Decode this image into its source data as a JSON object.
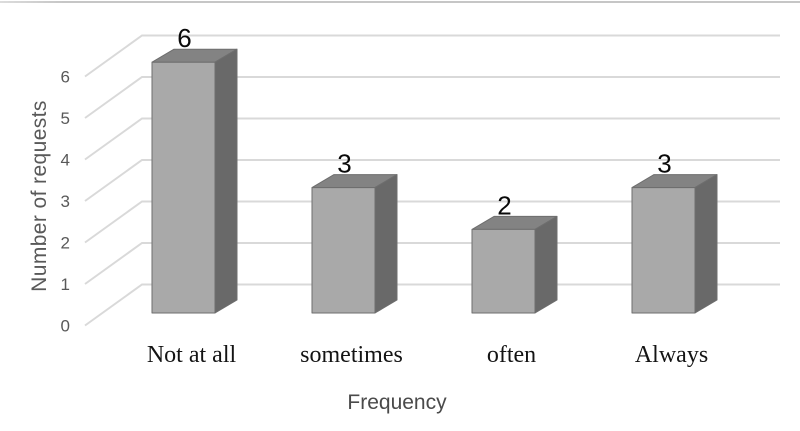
{
  "figure": {
    "top_border_color": "#c6c6c6",
    "background": "#ffffff"
  },
  "chart_data": {
    "type": "bar",
    "variant": "3d-column",
    "title": "",
    "xlabel": "Frequency",
    "ylabel": "Number of requests",
    "categories": [
      "Not at all",
      "sometimes",
      "often",
      "Always"
    ],
    "values": [
      6,
      3,
      2,
      3
    ],
    "data_labels": [
      "6",
      "3",
      "2",
      "3"
    ],
    "yticks": [
      0,
      1,
      2,
      3,
      4,
      5,
      6
    ],
    "ylim": [
      0,
      6
    ],
    "grid": true,
    "legend": false,
    "colors": {
      "bar_front": "#a9a9a9",
      "bar_top": "#838383",
      "bar_side": "#696969",
      "bar_outline": "#6e6e6e",
      "gridline": "#d9d9d9",
      "tick_text": "#595959",
      "axis_title_y": "#595959",
      "axis_title_x": "#4a4a4a",
      "data_label": "#0a0a0a",
      "category_text": "#141414"
    }
  }
}
